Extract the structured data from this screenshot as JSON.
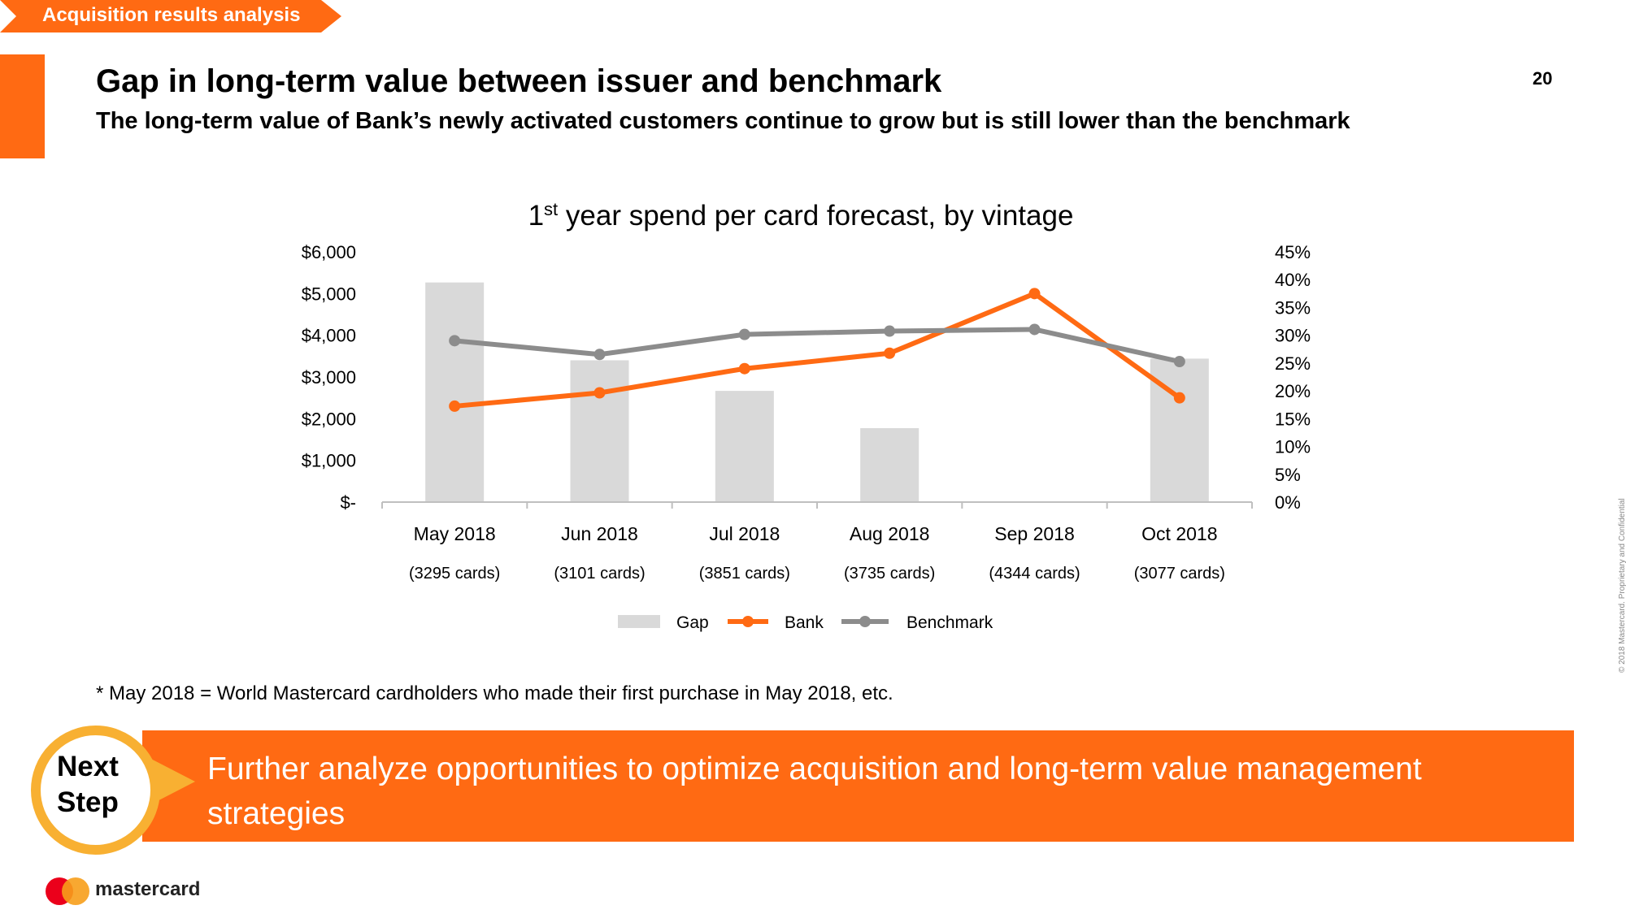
{
  "header": {
    "section_tag": "Acquisition results analysis",
    "title": "Gap in long-term value between issuer and benchmark",
    "subtitle": "The long-term value of Bank’s newly activated customers continue to grow but is still lower than the benchmark",
    "page_number": "20"
  },
  "chart_data": {
    "type": "bar",
    "title_main": "1",
    "title_sup": "st",
    "title_rest": " year spend per card forecast, by vintage",
    "categories": [
      "May 2018",
      "Jun 2018",
      "Jul 2018",
      "Aug 2018",
      "Sep 2018",
      "Oct 2018"
    ],
    "category_sublabels": [
      "(3295 cards)",
      "(3101 cards)",
      "(3851 cards)",
      "(3735 cards)",
      "(4344 cards)",
      "(3077 cards)"
    ],
    "ylim": [
      0,
      6000
    ],
    "y2lim": [
      0,
      45
    ],
    "y_ticks": [
      "$-",
      "$1,000",
      "$2,000",
      "$3,000",
      "$4,000",
      "$5,000",
      "$6,000"
    ],
    "y2_ticks": [
      "0%",
      "5%",
      "10%",
      "15%",
      "20%",
      "25%",
      "30%",
      "35%",
      "40%",
      "45%"
    ],
    "series": [
      {
        "name": "Gap",
        "type": "bar",
        "axis": "right",
        "values": [
          39.5,
          25.5,
          20,
          13.3,
          0,
          25.8
        ],
        "color": "#d9d9d9"
      },
      {
        "name": "Bank",
        "type": "line",
        "axis": "left",
        "values": [
          2300,
          2620,
          3200,
          3570,
          5000,
          2500
        ],
        "color": "#ff6a13"
      },
      {
        "name": "Benchmark",
        "type": "line",
        "axis": "left",
        "values": [
          3870,
          3540,
          4020,
          4100,
          4140,
          3370
        ],
        "color": "#8c8c8c"
      }
    ],
    "legend_position": "bottom",
    "grid": false
  },
  "footnote": "* May 2018 = World Mastercard cardholders who made their first purchase in May 2018, etc.",
  "next_step": {
    "badge_line1": "Next",
    "badge_line2": "Step",
    "text": "Further analyze opportunities to optimize acquisition and long-term value management strategies"
  },
  "footer": {
    "brand": "mastercard",
    "confidential": "© 2018 Mastercard. Proprietary and Confidential"
  },
  "colors": {
    "accent": "#ff6a13",
    "badge_ring": "#f8b032"
  }
}
